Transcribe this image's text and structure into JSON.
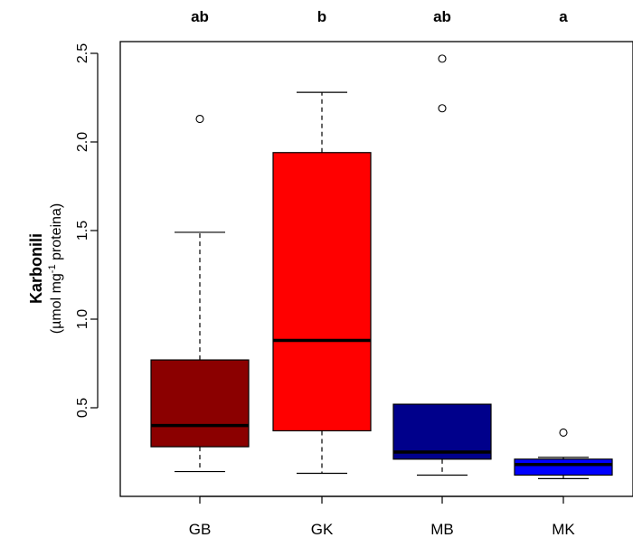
{
  "chart_data": {
    "type": "boxplot",
    "title": "",
    "xlabel": "",
    "ylabel": {
      "main": "Karbonili",
      "unit_prefix": "(µmol mg",
      "unit_superscript": "-1",
      "unit_suffix": " proteina)"
    },
    "ylim": [
      0.0,
      2.57
    ],
    "y_ticks": [
      {
        "value": 0.5,
        "label": "0.5"
      },
      {
        "value": 1.0,
        "label": "1.0"
      },
      {
        "value": 1.5,
        "label": "1.5"
      },
      {
        "value": 2.0,
        "label": "2.0"
      },
      {
        "value": 2.5,
        "label": "2.5"
      }
    ],
    "grid": false,
    "groups": [
      {
        "name": "GB",
        "letter": "ab",
        "color": "#8B0000",
        "whisker_low": 0.14,
        "q1": 0.28,
        "median": 0.4,
        "q3": 0.77,
        "whisker_high": 1.49,
        "outliers": [
          2.13
        ]
      },
      {
        "name": "GK",
        "letter": "b",
        "color": "#FF0000",
        "whisker_low": 0.13,
        "q1": 0.37,
        "median": 0.88,
        "q3": 1.94,
        "whisker_high": 2.28,
        "outliers": []
      },
      {
        "name": "MB",
        "letter": "ab",
        "color": "#00008B",
        "whisker_low": 0.12,
        "q1": 0.21,
        "median": 0.25,
        "q3": 0.52,
        "whisker_high": 0.52,
        "outliers": [
          2.19,
          2.47
        ]
      },
      {
        "name": "MK",
        "letter": "a",
        "color": "#0000FF",
        "whisker_low": 0.1,
        "q1": 0.12,
        "median": 0.18,
        "q3": 0.21,
        "whisker_high": 0.22,
        "outliers": [
          0.36
        ]
      }
    ]
  }
}
